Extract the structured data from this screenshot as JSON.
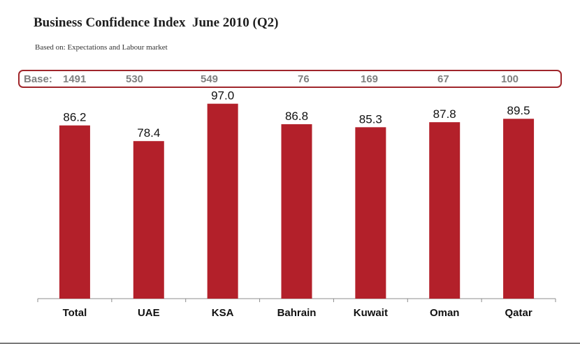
{
  "title": "Business Confidence Index  June 2010 (Q2)",
  "subtitle": "Based on: Expectations and Labour market",
  "base": {
    "label": "Base:",
    "values": [
      "1491",
      "530",
      "549",
      "76",
      "169",
      "67",
      "100"
    ]
  },
  "colors": {
    "bar": "#b3202a",
    "base_border": "#a0262b",
    "base_text": "#7f7f7f"
  },
  "chart_data": {
    "type": "bar",
    "title": "Business Confidence Index  June 2010 (Q2)",
    "subtitle": "Based on: Expectations and Labour market",
    "categories": [
      "Total",
      "UAE",
      "KSA",
      "Bahrain",
      "Kuwait",
      "Oman",
      "Qatar"
    ],
    "values": [
      86.2,
      78.4,
      97.0,
      86.8,
      85.3,
      87.8,
      89.5
    ],
    "data_labels": [
      "86.2",
      "78.4",
      "97.0",
      "86.8",
      "85.3",
      "87.8",
      "89.5"
    ],
    "xlabel": "",
    "ylabel": "",
    "ylim": [
      0,
      100
    ],
    "grid": false,
    "legend": "none"
  }
}
